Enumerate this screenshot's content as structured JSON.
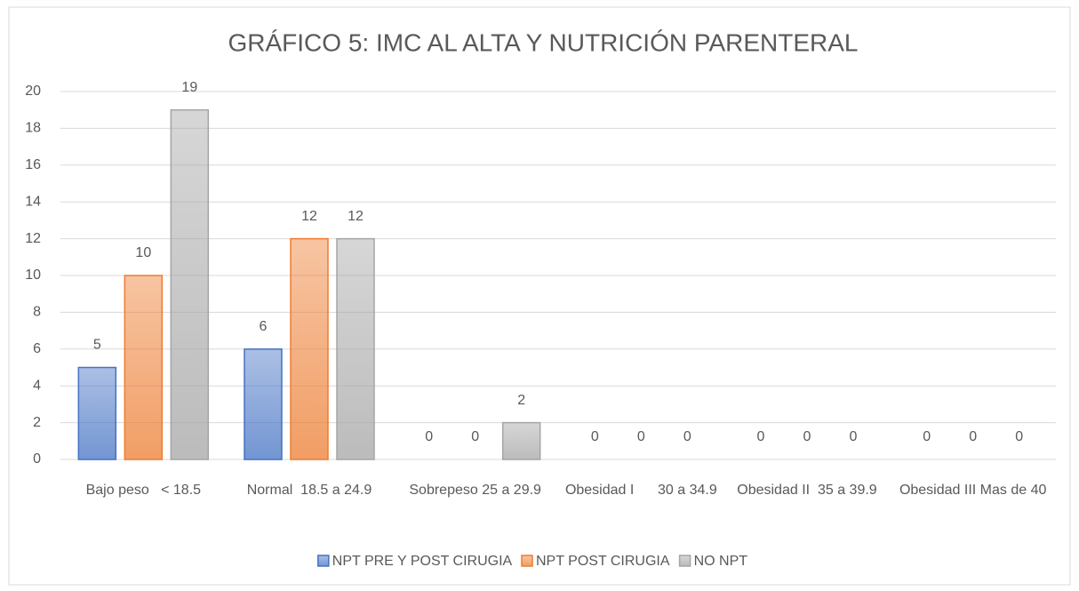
{
  "chart_data": {
    "type": "bar",
    "title": "GRÁFICO 5: IMC AL ALTA Y NUTRICIÓN PARENTERAL",
    "categories": [
      "Bajo peso   < 18.5",
      "Normal  18.5 a 24.9",
      "Sobrepeso 25 a 29.9",
      "Obesidad I      30 a 34.9",
      "Obesidad II  35 a 39.9",
      "Obesidad III Mas de 40"
    ],
    "series": [
      {
        "name": "NPT PRE Y POST CIRUGIA",
        "color": "#4472c4",
        "values": [
          5,
          6,
          0,
          0,
          0,
          0
        ]
      },
      {
        "name": "NPT POST CIRUGIA",
        "color": "#ed7d31",
        "values": [
          10,
          12,
          0,
          0,
          0,
          0
        ]
      },
      {
        "name": "NO NPT",
        "color": "#a5a5a5",
        "values": [
          19,
          12,
          2,
          0,
          0,
          0
        ]
      }
    ],
    "ylim": [
      0,
      20
    ],
    "yticks": [
      0,
      2,
      4,
      6,
      8,
      10,
      12,
      14,
      16,
      18,
      20
    ],
    "grid": true,
    "legend": "bottom"
  }
}
